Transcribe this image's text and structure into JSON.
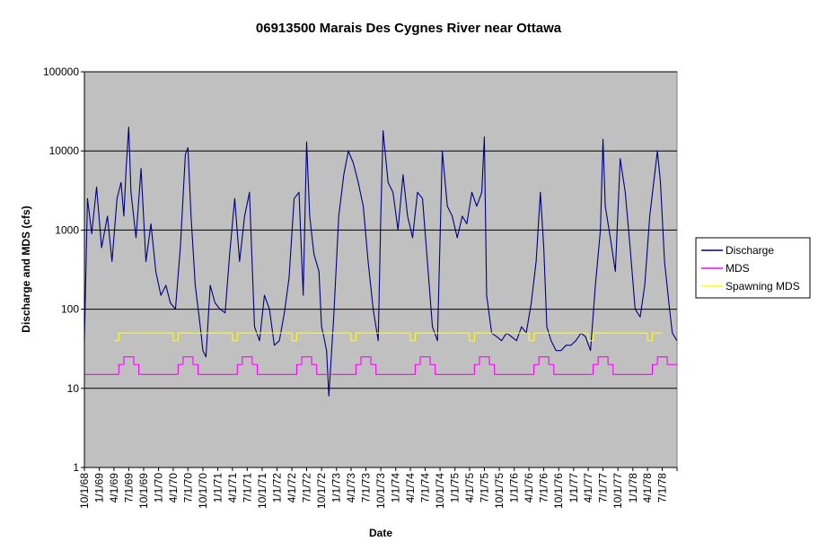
{
  "chart_data": {
    "type": "line",
    "title": "06913500 Marais Des Cygnes River near Ottawa",
    "xlabel": "Date",
    "ylabel": "Discharge and MDS (cfs)",
    "y_scale": "log",
    "ylim": [
      1,
      100000
    ],
    "y_ticks": [
      "1",
      "10",
      "100",
      "1000",
      "10000",
      "100000"
    ],
    "xlim": [
      "1968-10-01",
      "1978-09-30"
    ],
    "x_ticks": [
      "10/1/68",
      "1/1/69",
      "4/1/69",
      "7/1/69",
      "10/1/69",
      "1/1/70",
      "4/1/70",
      "7/1/70",
      "10/1/70",
      "1/1/71",
      "4/1/71",
      "7/1/71",
      "10/1/71",
      "1/1/72",
      "4/1/72",
      "7/1/72",
      "10/1/72",
      "1/1/73",
      "4/1/73",
      "7/1/73",
      "10/1/73",
      "1/1/74",
      "4/1/74",
      "7/1/74",
      "10/1/74",
      "1/1/75",
      "4/1/75",
      "7/1/75",
      "10/1/75",
      "1/1/76",
      "4/1/76",
      "7/1/76",
      "10/1/76",
      "1/1/77",
      "4/1/77",
      "7/1/77",
      "10/1/77",
      "1/1/78",
      "4/1/78",
      "7/1/78"
    ],
    "grid": "horizontal major gridlines",
    "plot_background": "#c0c0c0",
    "legend_position": "right",
    "series": [
      {
        "name": "Discharge",
        "color": "#000080",
        "x": [
          "1968-10-01",
          "1968-10-20",
          "1968-11-15",
          "1968-12-15",
          "1969-01-15",
          "1969-02-20",
          "1969-03-20",
          "1969-04-20",
          "1969-05-15",
          "1969-06-01",
          "1969-06-15",
          "1969-07-01",
          "1969-07-15",
          "1969-08-15",
          "1969-09-15",
          "1969-10-15",
          "1969-11-15",
          "1969-12-15",
          "1970-01-15",
          "1970-02-15",
          "1970-03-15",
          "1970-04-15",
          "1970-05-15",
          "1970-06-15",
          "1970-07-01",
          "1970-07-20",
          "1970-08-15",
          "1970-09-15",
          "1970-10-01",
          "1970-10-20",
          "1970-11-15",
          "1970-12-15",
          "1971-01-15",
          "1971-02-15",
          "1971-03-15",
          "1971-04-15",
          "1971-05-15",
          "1971-06-15",
          "1971-07-15",
          "1971-08-15",
          "1971-09-15",
          "1971-10-15",
          "1971-11-15",
          "1971-12-15",
          "1972-01-15",
          "1972-02-15",
          "1972-03-15",
          "1972-04-15",
          "1972-05-15",
          "1972-06-10",
          "1972-07-01",
          "1972-07-20",
          "1972-08-15",
          "1972-09-15",
          "1972-10-01",
          "1972-10-15",
          "1972-11-01",
          "1972-11-15",
          "1972-12-15",
          "1973-01-15",
          "1973-02-15",
          "1973-03-15",
          "1973-04-15",
          "1973-05-15",
          "1973-06-15",
          "1973-07-15",
          "1973-08-15",
          "1973-09-15",
          "1973-10-01",
          "1973-10-15",
          "1973-11-15",
          "1973-12-15",
          "1974-01-15",
          "1974-02-15",
          "1974-03-15",
          "1974-04-15",
          "1974-05-15",
          "1974-06-15",
          "1974-07-15",
          "1974-08-15",
          "1974-09-15",
          "1974-10-15",
          "1974-11-15",
          "1974-12-15",
          "1975-01-15",
          "1975-02-15",
          "1975-03-15",
          "1975-04-15",
          "1975-05-15",
          "1975-06-15",
          "1975-07-01",
          "1975-07-15",
          "1975-08-15",
          "1975-09-15",
          "1975-10-15",
          "1975-11-15",
          "1975-12-15",
          "1976-01-15",
          "1976-02-15",
          "1976-03-15",
          "1976-04-15",
          "1976-05-15",
          "1976-06-10",
          "1976-07-01",
          "1976-07-20",
          "1976-08-15",
          "1976-09-15",
          "1976-10-15",
          "1976-11-15",
          "1976-12-15",
          "1977-01-15",
          "1977-02-15",
          "1977-03-15",
          "1977-04-15",
          "1977-05-15",
          "1977-06-15",
          "1977-07-01",
          "1977-07-15",
          "1977-08-15",
          "1977-09-15",
          "1977-10-15",
          "1977-11-15",
          "1977-12-15",
          "1978-01-15",
          "1978-02-15",
          "1978-03-15",
          "1978-04-15",
          "1978-05-15",
          "1978-06-01",
          "1978-06-20",
          "1978-07-15",
          "1978-08-15",
          "1978-09-01",
          "1978-09-30"
        ],
        "values": [
          40,
          2500,
          900,
          3500,
          600,
          1500,
          400,
          2500,
          4000,
          1500,
          6000,
          20000,
          3000,
          800,
          6000,
          400,
          1200,
          300,
          150,
          200,
          120,
          100,
          600,
          9000,
          11000,
          1500,
          200,
          60,
          30,
          25,
          200,
          120,
          100,
          90,
          500,
          2500,
          400,
          1500,
          3000,
          60,
          40,
          150,
          100,
          35,
          40,
          90,
          250,
          2500,
          3000,
          150,
          13000,
          1500,
          500,
          300,
          60,
          45,
          30,
          8,
          80,
          1500,
          5000,
          10000,
          7000,
          4000,
          2000,
          400,
          100,
          40,
          1500,
          18000,
          4000,
          3000,
          1000,
          5000,
          1500,
          800,
          3000,
          2500,
          400,
          60,
          40,
          10000,
          2000,
          1500,
          800,
          1500,
          1200,
          3000,
          2000,
          3000,
          15000,
          150,
          50,
          45,
          40,
          50,
          45,
          40,
          60,
          50,
          120,
          400,
          3000,
          600,
          60,
          40,
          30,
          30,
          35,
          35,
          40,
          50,
          45,
          30,
          200,
          1000,
          14000,
          2000,
          800,
          300,
          8000,
          3000,
          600,
          100,
          80,
          200,
          1500,
          5000,
          10000,
          4000,
          400,
          100,
          50,
          40
        ]
      },
      {
        "name": "MDS",
        "color": "#ff00ff",
        "step": true,
        "x": [
          "1968-10-01",
          "1969-05-01",
          "1969-06-01",
          "1969-08-01",
          "1969-09-01",
          "1970-05-01",
          "1970-06-01",
          "1970-08-01",
          "1970-09-01",
          "1971-05-01",
          "1971-06-01",
          "1971-08-01",
          "1971-09-01",
          "1972-05-01",
          "1972-06-01",
          "1972-08-01",
          "1972-09-01",
          "1973-05-01",
          "1973-06-01",
          "1973-08-01",
          "1973-09-01",
          "1974-05-01",
          "1974-06-01",
          "1974-08-01",
          "1974-09-01",
          "1975-05-01",
          "1975-06-01",
          "1975-08-01",
          "1975-09-01",
          "1976-05-01",
          "1976-06-01",
          "1976-08-01",
          "1976-09-01",
          "1977-05-01",
          "1977-06-01",
          "1977-08-01",
          "1977-09-01",
          "1978-05-01",
          "1978-06-01",
          "1978-08-01",
          "1978-09-01",
          "1978-09-30"
        ],
        "values": [
          15,
          20,
          25,
          20,
          15,
          20,
          25,
          20,
          15,
          20,
          25,
          20,
          15,
          20,
          25,
          20,
          15,
          20,
          25,
          20,
          15,
          20,
          25,
          20,
          15,
          20,
          25,
          20,
          15,
          20,
          25,
          20,
          15,
          20,
          25,
          20,
          15,
          20,
          25,
          20,
          20,
          20
        ]
      },
      {
        "name": "Spawning MDS",
        "color": "#ffff00",
        "step": true,
        "x": [
          "1969-04-01",
          "1969-05-01",
          "1969-06-30",
          "1970-04-01",
          "1970-05-01",
          "1970-06-30",
          "1971-04-01",
          "1971-05-01",
          "1971-06-30",
          "1972-04-01",
          "1972-05-01",
          "1972-06-30",
          "1973-04-01",
          "1973-05-01",
          "1973-06-30",
          "1974-04-01",
          "1974-05-01",
          "1974-06-30",
          "1975-04-01",
          "1975-05-01",
          "1975-06-30",
          "1976-04-01",
          "1976-05-01",
          "1976-06-30",
          "1977-04-01",
          "1977-05-01",
          "1977-06-30",
          "1978-04-01",
          "1978-05-01",
          "1978-06-30"
        ],
        "values": [
          40,
          50,
          50,
          40,
          50,
          50,
          40,
          50,
          50,
          40,
          50,
          50,
          40,
          50,
          50,
          40,
          50,
          50,
          40,
          50,
          50,
          40,
          50,
          50,
          40,
          50,
          50,
          40,
          50,
          50
        ]
      }
    ]
  }
}
